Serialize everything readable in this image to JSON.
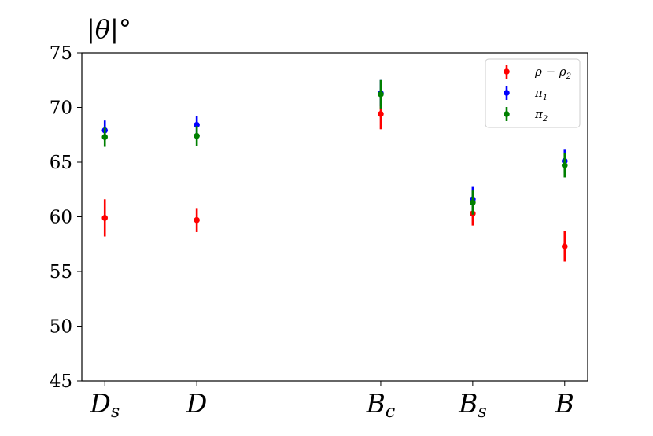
{
  "chart_data": {
    "type": "scatter",
    "title": "|θ|°",
    "xlabel": "",
    "ylabel": "",
    "ylim": [
      45,
      75
    ],
    "yticks": [
      45,
      50,
      55,
      60,
      65,
      70,
      75
    ],
    "xlim": [
      -0.25,
      5.25
    ],
    "categories": [
      {
        "label": "D",
        "sub": "s",
        "x": 0
      },
      {
        "label": "D",
        "sub": "",
        "x": 1
      },
      {
        "label": "B",
        "sub": "c",
        "x": 3
      },
      {
        "label": "B",
        "sub": "s",
        "x": 4
      },
      {
        "label": "B",
        "sub": "",
        "x": 5
      }
    ],
    "series": [
      {
        "name": "ρ − ρ₂",
        "label_main": "ρ − ρ",
        "label_sub": "2",
        "color": "#ff0000",
        "points": [
          {
            "x": 0,
            "y": 59.9,
            "err": 1.7
          },
          {
            "x": 1,
            "y": 59.7,
            "err": 1.1
          },
          {
            "x": 3,
            "y": 69.4,
            "err": 1.4
          },
          {
            "x": 4,
            "y": 60.3,
            "err": 1.1
          },
          {
            "x": 5,
            "y": 57.3,
            "err": 1.4
          }
        ]
      },
      {
        "name": "π₁",
        "label_main": "π",
        "label_sub": "1",
        "color": "#0000ff",
        "points": [
          {
            "x": 0,
            "y": 67.9,
            "err": 0.9
          },
          {
            "x": 1,
            "y": 68.4,
            "err": 0.8
          },
          {
            "x": 3,
            "y": 71.3,
            "err": 1.2
          },
          {
            "x": 4,
            "y": 61.6,
            "err": 1.2
          },
          {
            "x": 5,
            "y": 65.1,
            "err": 1.1
          }
        ]
      },
      {
        "name": "π₂",
        "label_main": "π",
        "label_sub": "2",
        "color": "#008000",
        "points": [
          {
            "x": 0,
            "y": 67.3,
            "err": 0.9
          },
          {
            "x": 1,
            "y": 67.4,
            "err": 0.9
          },
          {
            "x": 3,
            "y": 71.2,
            "err": 1.3
          },
          {
            "x": 4,
            "y": 61.3,
            "err": 1.1
          },
          {
            "x": 5,
            "y": 64.7,
            "err": 1.1
          }
        ]
      }
    ],
    "legend_position": "top-right",
    "grid": false
  }
}
